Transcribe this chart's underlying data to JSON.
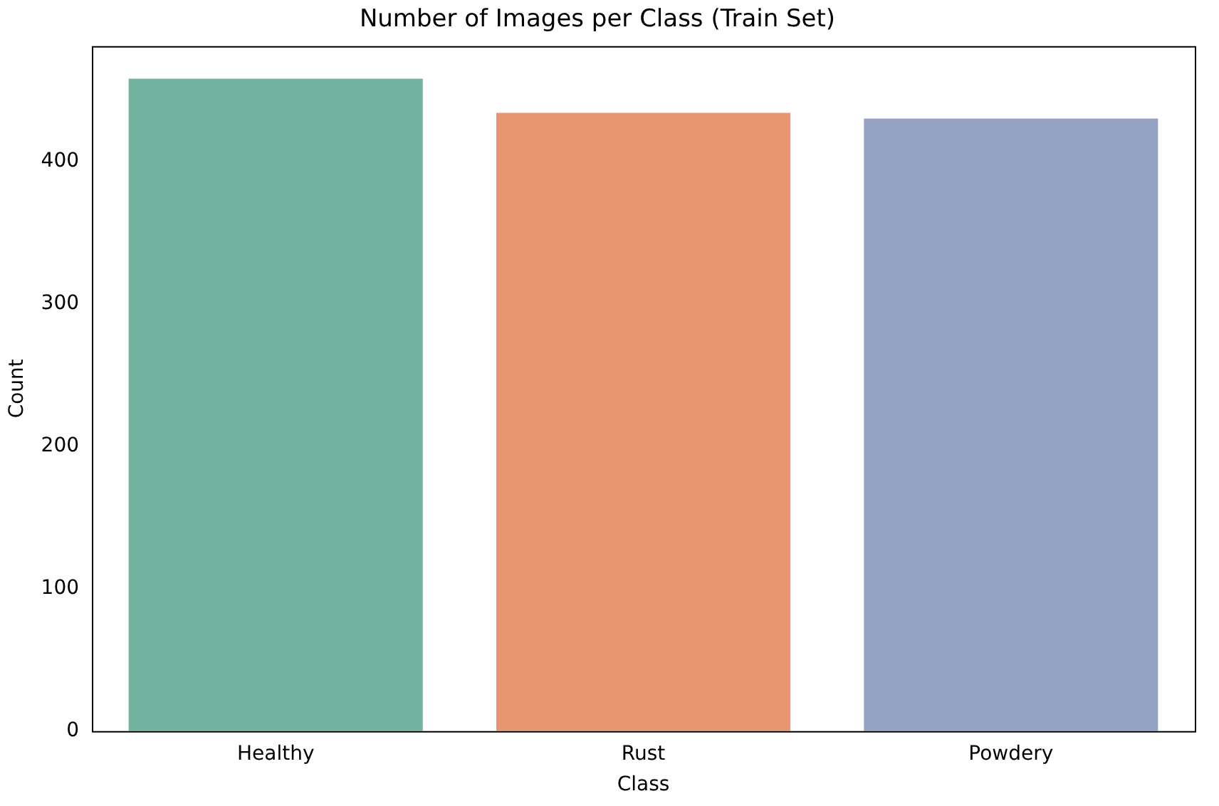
{
  "chart_data": {
    "type": "bar",
    "title": "Number of Images per Class (Train Set)",
    "xlabel": "Class",
    "ylabel": "Count",
    "categories": [
      "Healthy",
      "Rust",
      "Powdery"
    ],
    "values": [
      458,
      434,
      430
    ],
    "colors": [
      "#72b4a0",
      "#e8966f",
      "#94a3c3"
    ],
    "ylim": [
      0,
      480.9
    ],
    "yticks": [
      0,
      100,
      200,
      300,
      400
    ],
    "grid": false,
    "legend": false
  }
}
